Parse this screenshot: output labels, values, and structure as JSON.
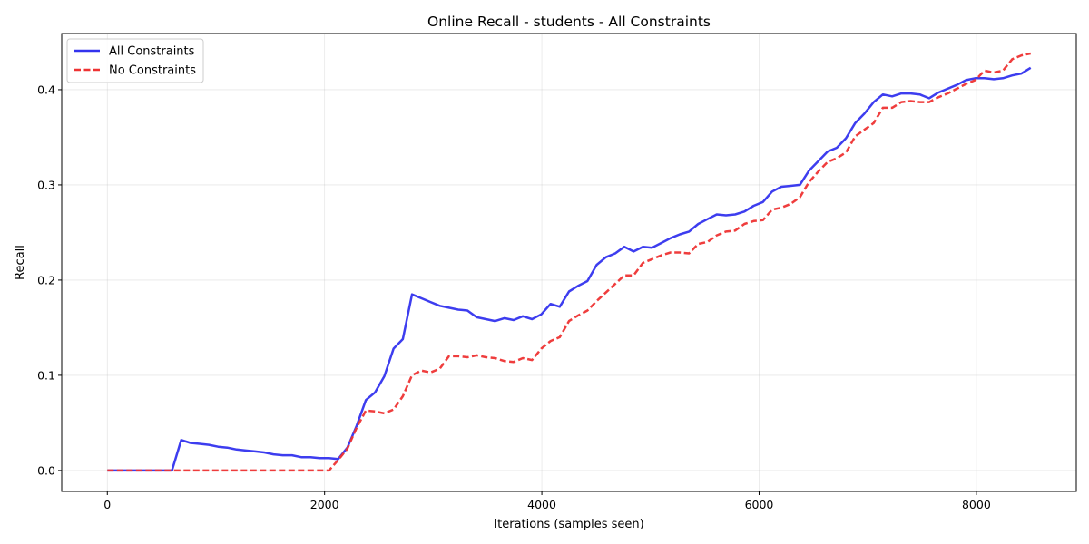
{
  "chart_data": {
    "type": "line",
    "title": "Online Recall - students - All Constraints",
    "xlabel": "Iterations (samples seen)",
    "ylabel": "Recall",
    "xlim": [
      -420,
      8920
    ],
    "ylim": [
      -0.022,
      0.459
    ],
    "xticks": [
      0,
      2000,
      4000,
      6000,
      8000
    ],
    "xtick_labels": [
      "0",
      "2000",
      "4000",
      "6000",
      "8000"
    ],
    "yticks": [
      0.0,
      0.1,
      0.2,
      0.3,
      0.4
    ],
    "ytick_labels": [
      "0.0",
      "0.1",
      "0.2",
      "0.3",
      "0.4"
    ],
    "grid": true,
    "legend_position": "top-left",
    "series": [
      {
        "name": "All Constraints",
        "color": "#3333ee",
        "style": "solid",
        "x": [
          0,
          85,
          170,
          255,
          340,
          425,
          510,
          595,
          680,
          765,
          850,
          935,
          1020,
          1105,
          1190,
          1275,
          1360,
          1445,
          1530,
          1615,
          1700,
          1785,
          1870,
          1955,
          2040,
          2125,
          2210,
          2295,
          2380,
          2465,
          2550,
          2635,
          2720,
          2805,
          2890,
          2975,
          3060,
          3145,
          3230,
          3315,
          3400,
          3485,
          3570,
          3655,
          3740,
          3825,
          3910,
          3995,
          4080,
          4165,
          4250,
          4335,
          4420,
          4505,
          4590,
          4675,
          4760,
          4845,
          4930,
          5015,
          5100,
          5185,
          5270,
          5355,
          5440,
          5525,
          5610,
          5695,
          5780,
          5865,
          5950,
          6035,
          6120,
          6205,
          6290,
          6375,
          6460,
          6545,
          6630,
          6715,
          6800,
          6885,
          6970,
          7055,
          7140,
          7225,
          7310,
          7395,
          7480,
          7565,
          7650,
          7735,
          7820,
          7905,
          7990,
          8075,
          8160,
          8245,
          8330,
          8415,
          8500
        ],
        "values": [
          0.0,
          0.0,
          0.0,
          0.0,
          0.0,
          0.0,
          0.0,
          0.0,
          0.032,
          0.029,
          0.028,
          0.027,
          0.025,
          0.024,
          0.022,
          0.021,
          0.02,
          0.019,
          0.017,
          0.016,
          0.016,
          0.014,
          0.014,
          0.013,
          0.013,
          0.012,
          0.024,
          0.047,
          0.074,
          0.082,
          0.099,
          0.128,
          0.138,
          0.185,
          0.181,
          0.177,
          0.173,
          0.171,
          0.169,
          0.168,
          0.161,
          0.159,
          0.157,
          0.16,
          0.158,
          0.162,
          0.159,
          0.164,
          0.175,
          0.172,
          0.188,
          0.194,
          0.199,
          0.216,
          0.224,
          0.228,
          0.235,
          0.23,
          0.235,
          0.234,
          0.239,
          0.244,
          0.248,
          0.251,
          0.259,
          0.264,
          0.269,
          0.268,
          0.269,
          0.272,
          0.278,
          0.282,
          0.293,
          0.298,
          0.299,
          0.3,
          0.315,
          0.325,
          0.335,
          0.339,
          0.349,
          0.365,
          0.375,
          0.387,
          0.395,
          0.393,
          0.396,
          0.396,
          0.395,
          0.391,
          0.397,
          0.401,
          0.405,
          0.41,
          0.412,
          0.412,
          0.411,
          0.412,
          0.415,
          0.417,
          0.423
        ]
      },
      {
        "name": "No Constraints",
        "color": "#ee3333",
        "style": "dashed",
        "x": [
          0,
          85,
          170,
          255,
          340,
          425,
          510,
          595,
          680,
          765,
          850,
          935,
          1020,
          1105,
          1190,
          1275,
          1360,
          1445,
          1530,
          1615,
          1700,
          1785,
          1870,
          1955,
          2040,
          2125,
          2210,
          2295,
          2380,
          2465,
          2550,
          2635,
          2720,
          2805,
          2890,
          2975,
          3060,
          3145,
          3230,
          3315,
          3400,
          3485,
          3570,
          3655,
          3740,
          3825,
          3910,
          3995,
          4080,
          4165,
          4250,
          4335,
          4420,
          4505,
          4590,
          4675,
          4760,
          4845,
          4930,
          5015,
          5100,
          5185,
          5270,
          5355,
          5440,
          5525,
          5610,
          5695,
          5780,
          5865,
          5950,
          6035,
          6120,
          6205,
          6290,
          6375,
          6460,
          6545,
          6630,
          6715,
          6800,
          6885,
          6970,
          7055,
          7140,
          7225,
          7310,
          7395,
          7480,
          7565,
          7650,
          7735,
          7820,
          7905,
          7990,
          8075,
          8160,
          8245,
          8330,
          8415,
          8500
        ],
        "values": [
          0.0,
          0.0,
          0.0,
          0.0,
          0.0,
          0.0,
          0.0,
          0.0,
          0.0,
          0.0,
          0.0,
          0.0,
          0.0,
          0.0,
          0.0,
          0.0,
          0.0,
          0.0,
          0.0,
          0.0,
          0.0,
          0.0,
          0.0,
          0.0,
          0.0,
          0.011,
          0.023,
          0.045,
          0.063,
          0.062,
          0.06,
          0.064,
          0.078,
          0.1,
          0.105,
          0.103,
          0.107,
          0.12,
          0.12,
          0.119,
          0.121,
          0.119,
          0.118,
          0.115,
          0.114,
          0.118,
          0.116,
          0.128,
          0.136,
          0.14,
          0.157,
          0.163,
          0.168,
          0.178,
          0.187,
          0.196,
          0.205,
          0.205,
          0.218,
          0.222,
          0.226,
          0.229,
          0.229,
          0.228,
          0.238,
          0.24,
          0.247,
          0.251,
          0.252,
          0.259,
          0.262,
          0.263,
          0.274,
          0.276,
          0.28,
          0.287,
          0.303,
          0.314,
          0.324,
          0.328,
          0.334,
          0.351,
          0.358,
          0.365,
          0.381,
          0.381,
          0.387,
          0.388,
          0.387,
          0.387,
          0.392,
          0.396,
          0.401,
          0.406,
          0.41,
          0.42,
          0.418,
          0.42,
          0.432,
          0.436,
          0.438
        ]
      }
    ]
  }
}
